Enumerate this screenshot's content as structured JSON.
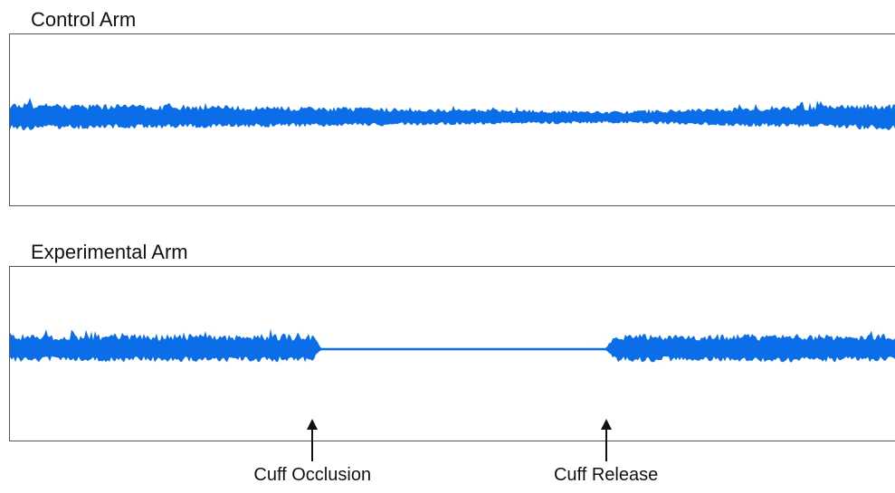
{
  "chart_data": [
    {
      "type": "line",
      "title": "Control Arm",
      "series": [
        {
          "values": [
            {
              "x": 0.0,
              "amp": 1.0
            },
            {
              "x": 0.69,
              "amp": 0.45
            },
            {
              "x": 1.0,
              "amp": 1.0
            }
          ]
        }
      ],
      "baseline": 0.0,
      "ylim": [
        -1,
        1
      ],
      "color": "#0b6ee8",
      "grid": false
    },
    {
      "type": "line",
      "title": "Experimental Arm",
      "series": [
        {
          "values": [
            {
              "x": 0.0,
              "amp": 1.0
            },
            {
              "x": 0.34,
              "amp": 1.0
            },
            {
              "x": 0.35,
              "amp": 0.05
            },
            {
              "x": 0.67,
              "amp": 0.05
            },
            {
              "x": 0.68,
              "amp": 1.0
            },
            {
              "x": 1.0,
              "amp": 1.0
            }
          ]
        }
      ],
      "baseline": 0.0,
      "ylim": [
        -1,
        1
      ],
      "color": "#0b6ee8",
      "grid": false,
      "annotations": [
        {
          "label": "Cuff Occlusion",
          "x": 0.34
        },
        {
          "label": "Cuff Release",
          "x": 0.67
        }
      ]
    }
  ]
}
